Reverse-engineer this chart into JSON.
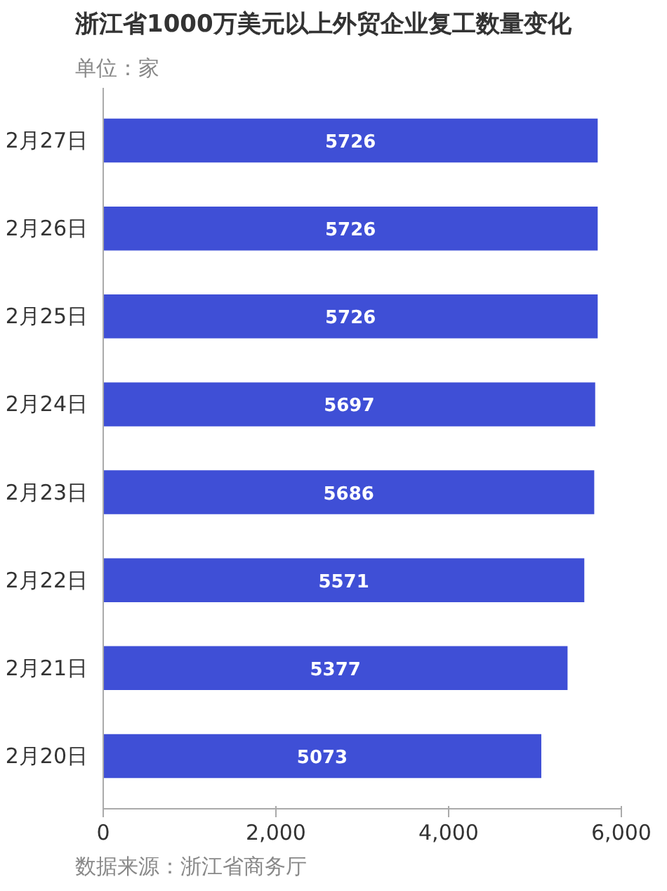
{
  "chart_data": {
    "type": "bar",
    "orientation": "horizontal",
    "title": "浙江省1000万美元以上外贸企业复工数量变化",
    "subtitle": "单位：家",
    "categories": [
      "2月27日",
      "2月26日",
      "2月25日",
      "2月24日",
      "2月23日",
      "2月22日",
      "2月21日",
      "2月20日"
    ],
    "values": [
      5726,
      5726,
      5726,
      5697,
      5686,
      5571,
      5377,
      5073
    ],
    "color": "#3f4fd6",
    "xlim": [
      0,
      6000
    ],
    "xticks": [
      0,
      {
        "value": 2000,
        "label": "2,000"
      },
      {
        "value": 4000,
        "label": "4,000"
      },
      {
        "value": 6000,
        "label": "6,000"
      }
    ],
    "grid": false,
    "data_labels": true,
    "annotations": [
      "数据来源：浙江省商务厅"
    ]
  }
}
